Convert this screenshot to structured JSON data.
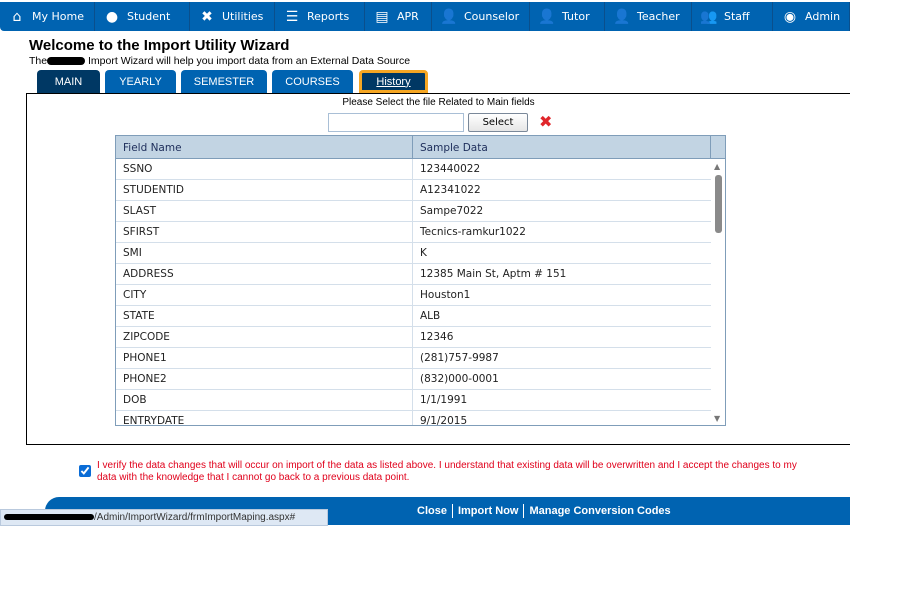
{
  "nav": [
    {
      "label": "My Home",
      "icon": "home-icon",
      "glyph": "⌂"
    },
    {
      "label": "Student",
      "icon": "student-icon",
      "glyph": "●"
    },
    {
      "label": "Utilities",
      "icon": "tools-icon",
      "glyph": "✖"
    },
    {
      "label": "Reports",
      "icon": "reports-icon",
      "glyph": "☰"
    },
    {
      "label": "APR",
      "icon": "apr-icon",
      "glyph": "▤"
    },
    {
      "label": "Counselor",
      "icon": "counselor-icon",
      "glyph": "👤"
    },
    {
      "label": "Tutor",
      "icon": "tutor-icon",
      "glyph": "👤"
    },
    {
      "label": "Teacher",
      "icon": "teacher-icon",
      "glyph": "👤"
    },
    {
      "label": "Staff",
      "icon": "staff-icon",
      "glyph": "👥"
    },
    {
      "label": "Admin",
      "icon": "admin-icon",
      "glyph": "◉"
    }
  ],
  "header": {
    "title": "Welcome to the Import Utility Wizard",
    "subtitle_pre": "The",
    "subtitle_post": "Import Wizard will help you import data from an External Data Source"
  },
  "tabs": [
    "MAIN",
    "YEARLY",
    "SEMESTER",
    "COURSES",
    "History"
  ],
  "main": {
    "prompt": "Please Select the file Related to Main fields",
    "file_value": "",
    "select_label": "Select",
    "columns": [
      "Field Name",
      "Sample Data"
    ],
    "rows": [
      [
        "SSNO",
        "123440022"
      ],
      [
        "STUDENTID",
        "A12341022"
      ],
      [
        "SLAST",
        "Sampe7022"
      ],
      [
        "SFIRST",
        "Tecnics-ramkur1022"
      ],
      [
        "SMI",
        "K"
      ],
      [
        "ADDRESS",
        "12385 Main St, Aptm # 151"
      ],
      [
        "CITY",
        "Houston1"
      ],
      [
        "STATE",
        "ALB"
      ],
      [
        "ZIPCODE",
        "12346"
      ],
      [
        "PHONE1",
        "(281)757-9987"
      ],
      [
        "PHONE2",
        "(832)000-0001"
      ],
      [
        "DOB",
        "1/1/1991"
      ],
      [
        "ENTRYDATE",
        "9/1/2015"
      ]
    ]
  },
  "verify": {
    "checked": true,
    "text": "I verify the data changes that will occur on import of the data as listed above. I understand that existing data will be overwritten and I accept the changes to my data with the knowledge that I cannot go back to a previous data point."
  },
  "footer": {
    "close": "Close",
    "import": "Import Now",
    "manage": "Manage Conversion Codes"
  },
  "status_url": "/Admin/ImportWizard/frmImportMaping.aspx#",
  "colors": {
    "nav": "#0063b1",
    "tab_active": "#003864",
    "highlight": "#f5a623",
    "warning": "#e0001b"
  }
}
